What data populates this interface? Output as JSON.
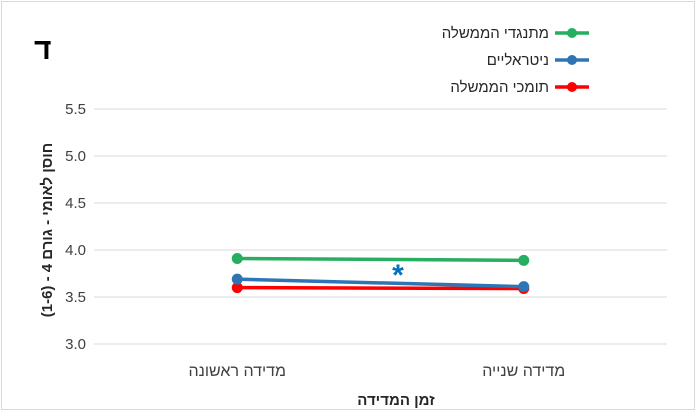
{
  "chart_data": {
    "type": "line",
    "panel_label": "ד",
    "x": [
      "מדידה ראשונה",
      "מדידה שנייה"
    ],
    "xlabel": "זמן המדידה",
    "ylabel": "חוסן לאומי - גורם 4 - (1-6)",
    "ylim": [
      3.0,
      5.5
    ],
    "yticks": [
      "3.0",
      "3.5",
      "4.0",
      "4.5",
      "5.0",
      "5.5"
    ],
    "grid": true,
    "legend_position": "top-right",
    "annotation": {
      "text": "*",
      "color": "#0070c0"
    },
    "series": [
      {
        "name": "מתנגדי הממשלה",
        "color": "#27ae60",
        "values": [
          3.91,
          3.89
        ]
      },
      {
        "name": "ניטראליים",
        "color": "#2e75b6",
        "values": [
          3.69,
          3.61
        ]
      },
      {
        "name": "תומכי הממשלה",
        "color": "#ff0000",
        "values": [
          3.6,
          3.59
        ]
      }
    ]
  }
}
